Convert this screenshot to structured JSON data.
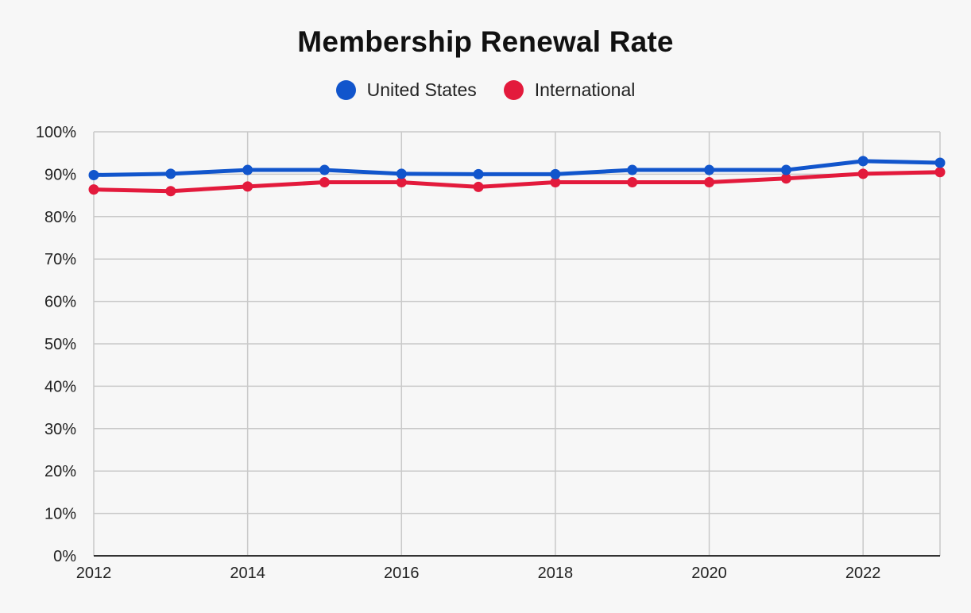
{
  "chart_data": {
    "type": "line",
    "title": "Membership Renewal Rate",
    "xlabel": "",
    "ylabel": "",
    "x": [
      2012,
      2013,
      2014,
      2015,
      2016,
      2017,
      2018,
      2019,
      2020,
      2021,
      2022,
      2023
    ],
    "x_ticks": [
      2012,
      2014,
      2016,
      2018,
      2020,
      2022
    ],
    "x_tick_labels": [
      "2012",
      "2014",
      "2016",
      "2018",
      "2020",
      "2022"
    ],
    "ylim": [
      0,
      100
    ],
    "y_ticks": [
      0,
      10,
      20,
      30,
      40,
      50,
      60,
      70,
      80,
      90,
      100
    ],
    "y_tick_labels": [
      "0%",
      "10%",
      "20%",
      "30%",
      "40%",
      "50%",
      "60%",
      "70%",
      "80%",
      "90%",
      "100%"
    ],
    "grid": true,
    "legend_position": "top",
    "series": [
      {
        "name": "United States",
        "color": "#1155cc",
        "values": [
          89.8,
          90.1,
          91.0,
          91.0,
          90.1,
          90.0,
          90.0,
          91.0,
          91.0,
          91.0,
          93.1,
          92.7
        ]
      },
      {
        "name": "International",
        "color": "#e31a3c",
        "values": [
          86.4,
          86.0,
          87.1,
          88.1,
          88.1,
          87.0,
          88.1,
          88.1,
          88.1,
          89.0,
          90.1,
          90.5
        ]
      }
    ]
  }
}
